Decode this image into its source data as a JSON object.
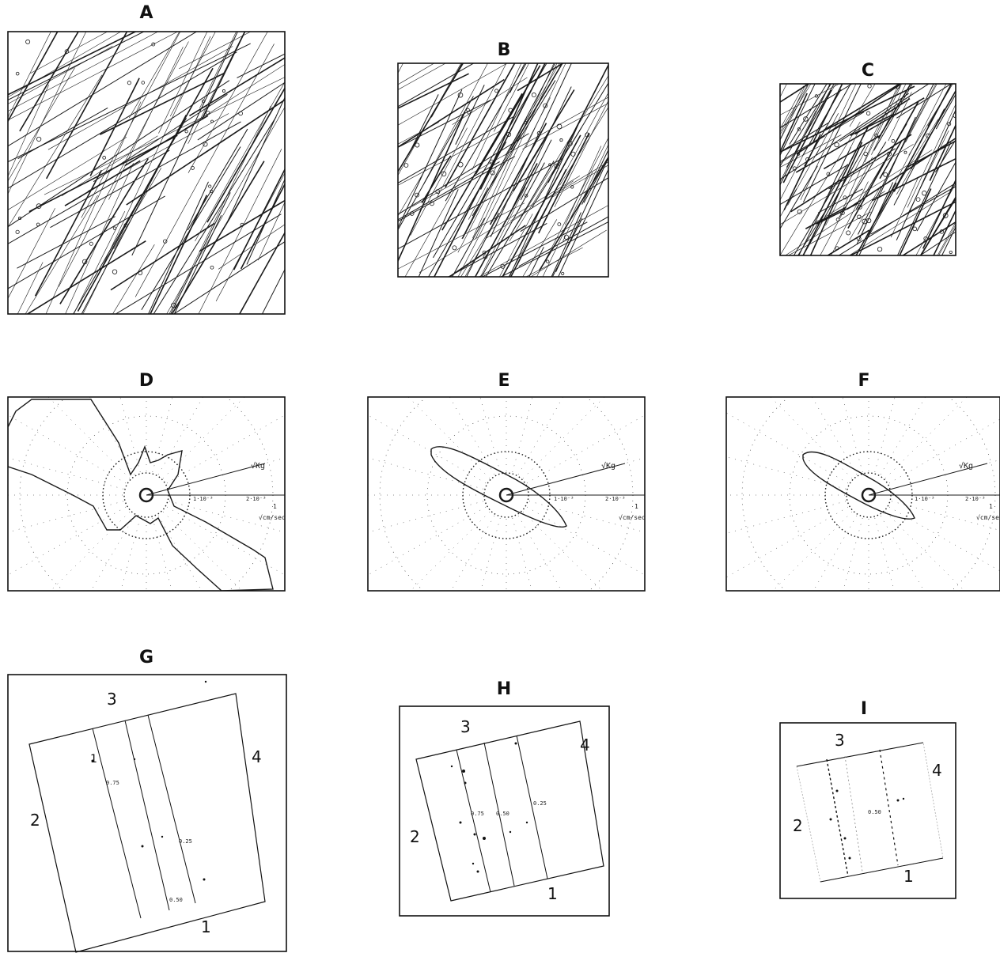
{
  "figure": {
    "panels": [
      {
        "id": "A",
        "title": "A",
        "type": "fracture-trace-map"
      },
      {
        "id": "B",
        "title": "B",
        "type": "fracture-trace-map"
      },
      {
        "id": "C",
        "title": "C",
        "type": "fracture-trace-map"
      },
      {
        "id": "D",
        "title": "D",
        "type": "polar-permeability-plot"
      },
      {
        "id": "E",
        "title": "E",
        "type": "polar-permeability-plot"
      },
      {
        "id": "F",
        "title": "F",
        "type": "polar-permeability-plot"
      },
      {
        "id": "G",
        "title": "G",
        "type": "rotated-block-diagram"
      },
      {
        "id": "H",
        "title": "H",
        "type": "rotated-block-diagram"
      },
      {
        "id": "I",
        "title": "I",
        "type": "rotated-block-diagram"
      }
    ],
    "polar_labels": {
      "axis_label_top": "√Kg",
      "axis_label_unit_num": "1",
      "axis_label_unit_den": "√cm/sec",
      "tick_1": "1·10⁻³",
      "tick_2": "2·10⁻³"
    },
    "block_labels": {
      "side_1": "1",
      "side_2": "2",
      "side_3": "3",
      "side_4": "4",
      "G_values": [
        "0.75",
        "0.25",
        "0.50"
      ],
      "H_values": [
        "0.75",
        "0.50",
        "0.25"
      ],
      "I_values": [
        "0.50"
      ]
    },
    "line_color": "#1a1a1a"
  }
}
